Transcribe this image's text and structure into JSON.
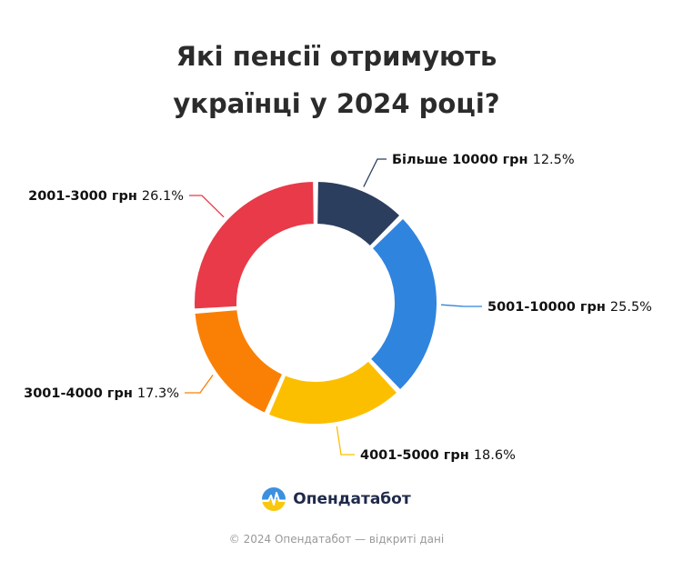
{
  "title_lines": [
    "Які пенсії отримують",
    "українці у 2024 році?"
  ],
  "chart_data": {
    "type": "pie",
    "variant": "donut",
    "categories": [
      "Більше 10000 грн",
      "5001-10000 грн",
      "4001-5000 грн",
      "3001-4000 грн",
      "2001-3000 грн"
    ],
    "values": [
      12.5,
      25.5,
      18.6,
      17.3,
      26.1
    ],
    "value_labels": [
      "12.5%",
      "25.5%",
      "18.6%",
      "17.3%",
      "26.1%"
    ],
    "colors": [
      "#2c3e5e",
      "#2f84de",
      "#fcbf00",
      "#fa8005",
      "#e83a48"
    ],
    "title": "Які пенсії отримують українці у 2024 році?"
  },
  "brand": {
    "name": "Опендатабот",
    "logo_icon": "opendatabot-logo-icon"
  },
  "footer": "© 2024 Опендатабот — відкриті дані"
}
